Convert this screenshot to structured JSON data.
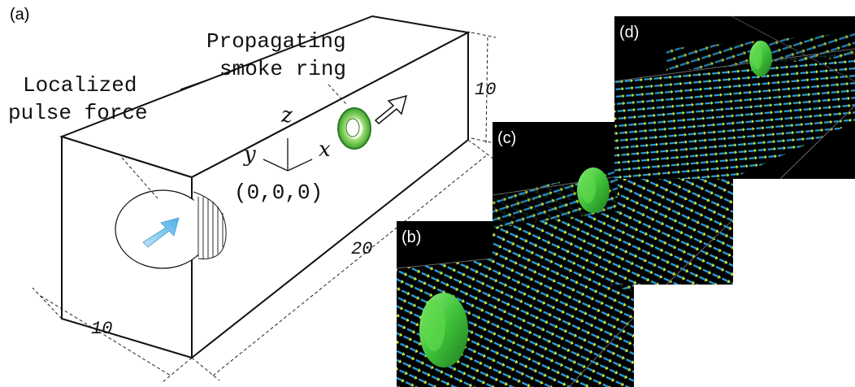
{
  "figure": {
    "panel_a_label": "(a)",
    "panel_b_label": "(b)",
    "panel_c_label": "(c)",
    "panel_d_label": "(d)",
    "annotation_smoke_line1": "Propagating",
    "annotation_smoke_line2": "smoke ring",
    "annotation_pulse_line1": "Localized",
    "annotation_pulse_line2": "pulse force",
    "axis_z": "z",
    "axis_y": "y",
    "axis_x": "x",
    "origin": "(0,0,0)",
    "dim_height": "10",
    "dim_length": "20",
    "dim_width": "10"
  },
  "colors": {
    "panel_background": "#000000",
    "vector_blue": "#2a9fd8",
    "vector_tip_yellow": "#d8e820",
    "ring_green": "#4ccd3a",
    "arrow_light_blue": "#7cc6ee"
  }
}
